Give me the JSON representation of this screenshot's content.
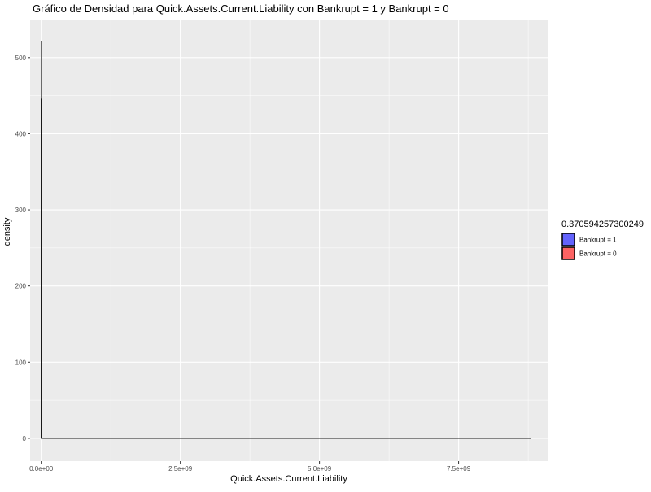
{
  "chart_data": {
    "type": "area",
    "title": "Gráfico de Densidad para Quick.Assets.Current.Liability con Bankrupt = 1 y Bankrupt = 0",
    "xlabel": "Quick.Assets.Current.Liability",
    "ylabel": "density",
    "xlim": [
      -200000000,
      9100000000
    ],
    "ylim": [
      -30,
      550
    ],
    "x_ticks": [
      0,
      2500000000,
      5000000000,
      7500000000
    ],
    "x_tick_labels": [
      "0.0e+00",
      "2.5e+09",
      "5.0e+09",
      "7.5e+09"
    ],
    "y_ticks": [
      0,
      100,
      200,
      300,
      400,
      500
    ],
    "y_tick_labels": [
      "0",
      "100",
      "200",
      "300",
      "400",
      "500"
    ],
    "grid": true,
    "legend": {
      "title": "0.370594257300249",
      "placement": "right"
    },
    "series": [
      {
        "name": "Bankrupt = 1",
        "color": "#3333ff",
        "points": [
          [
            0,
            0
          ],
          [
            0,
            522
          ],
          [
            0,
            0
          ],
          [
            8800000000,
            0
          ]
        ]
      },
      {
        "name": "Bankrupt = 0",
        "color": "#ff3333",
        "points": [
          [
            0,
            0
          ],
          [
            0,
            446
          ],
          [
            0,
            0
          ],
          [
            8800000000,
            0
          ]
        ]
      }
    ]
  },
  "colors": {
    "panel_background": "#ebebeb",
    "grid_major": "#ffffff",
    "outline": "#000000"
  }
}
